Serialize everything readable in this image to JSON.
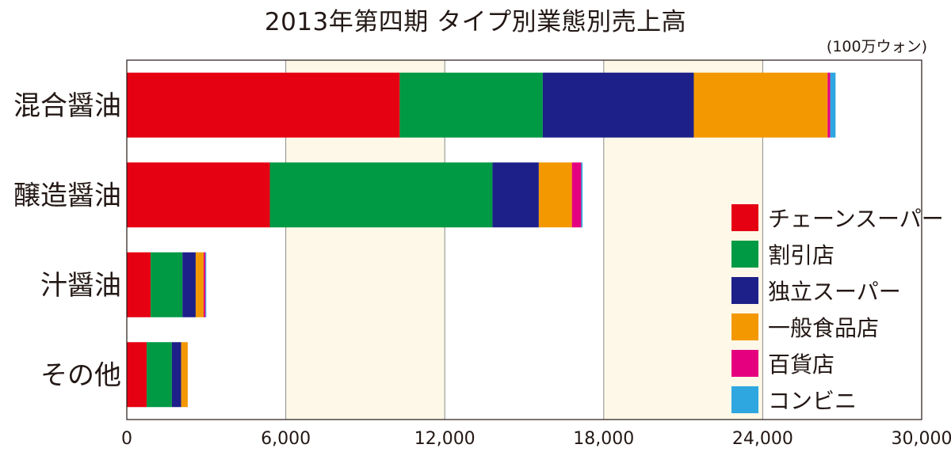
{
  "chart_data": {
    "type": "bar",
    "orientation": "horizontal",
    "stacked": true,
    "title": "2013年第四期 タイプ別業態別売上高",
    "unit": "(100万ウォン)",
    "categories": [
      "混合醤油",
      "醸造醤油",
      "汁醤油",
      "その他"
    ],
    "series": [
      {
        "name": "チェーンスーパー",
        "color": "#e50012",
        "values": [
          10300,
          5400,
          900,
          750
        ]
      },
      {
        "name": "割引店",
        "color": "#009944",
        "values": [
          5400,
          8400,
          1200,
          950
        ]
      },
      {
        "name": "独立スーパー",
        "color": "#1d2088",
        "values": [
          5700,
          1750,
          500,
          350
        ]
      },
      {
        "name": "一般食品店",
        "color": "#f39800",
        "values": [
          5050,
          1250,
          300,
          250
        ]
      },
      {
        "name": "百貨店",
        "color": "#e4007f",
        "values": [
          100,
          350,
          70,
          0
        ]
      },
      {
        "name": "コンビニ",
        "color": "#2ea7e0",
        "values": [
          200,
          50,
          30,
          0
        ]
      }
    ],
    "xlim": [
      0,
      30000
    ],
    "xticks": [
      "0",
      "6,000",
      "12,000",
      "18,000",
      "24,000",
      "30,000"
    ],
    "grid": true,
    "legend_position": "bottom-right"
  }
}
